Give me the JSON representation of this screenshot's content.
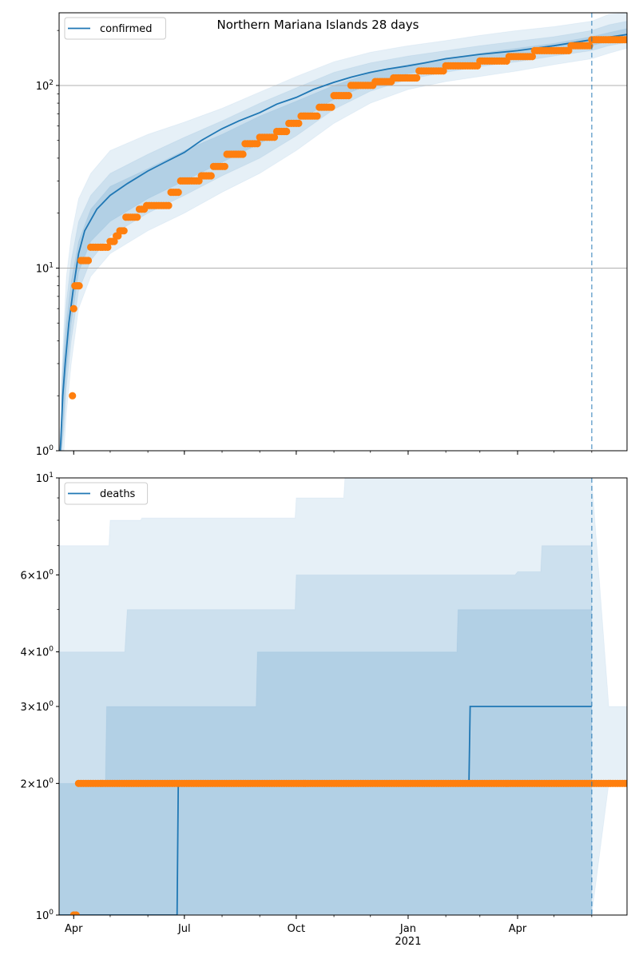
{
  "chart_data": [
    {
      "type": "line",
      "title": "Northern Mariana Islands 28 days",
      "yscale": "log",
      "ylim": [
        1,
        250
      ],
      "xlim": [
        "2020-03-20",
        "2021-06-30"
      ],
      "yticks": [
        {
          "value": 1,
          "base": "10",
          "exp": "0"
        },
        {
          "value": 10,
          "base": "10",
          "exp": "1"
        },
        {
          "value": 100,
          "base": "10",
          "exp": "2"
        }
      ],
      "xticks": [
        {
          "date": "2020-04-01",
          "label": "Apr",
          "sublabel": ""
        },
        {
          "date": "2020-07-01",
          "label": "Jul",
          "sublabel": ""
        },
        {
          "date": "2020-10-01",
          "label": "Oct",
          "sublabel": ""
        },
        {
          "date": "2021-01-01",
          "label": "Jan",
          "sublabel": "2021"
        },
        {
          "date": "2021-04-01",
          "label": "Apr",
          "sublabel": ""
        }
      ],
      "grid": "y-major",
      "legend": {
        "position": "top-left",
        "label": "confirmed"
      },
      "forecast_start": "2021-06-01",
      "series": [
        {
          "name": "confirmed",
          "style": "line",
          "color": "#1f77b4",
          "x": [
            "2020-03-21",
            "2020-03-23",
            "2020-03-25",
            "2020-03-28",
            "2020-04-01",
            "2020-04-05",
            "2020-04-10",
            "2020-04-20",
            "2020-05-01",
            "2020-05-15",
            "2020-06-01",
            "2020-06-15",
            "2020-07-01",
            "2020-07-15",
            "2020-08-01",
            "2020-08-15",
            "2020-09-01",
            "2020-09-15",
            "2020-10-01",
            "2020-10-15",
            "2020-11-01",
            "2020-11-15",
            "2020-12-01",
            "2020-12-15",
            "2021-01-01",
            "2021-01-15",
            "2021-02-01",
            "2021-03-01",
            "2021-04-01",
            "2021-05-01",
            "2021-06-01",
            "2021-06-30"
          ],
          "y": [
            1,
            2,
            3,
            5,
            8,
            12,
            16,
            21,
            25,
            29,
            34,
            38,
            43,
            50,
            58,
            64,
            71,
            79,
            86,
            95,
            104,
            111,
            118,
            123,
            128,
            133,
            140,
            148,
            155,
            165,
            178,
            190
          ]
        },
        {
          "name": "observed",
          "style": "scatter",
          "color": "#ff7f0e",
          "x": [
            "2020-03-31",
            "2020-04-01",
            "2020-04-02",
            "2020-04-04",
            "2020-04-07",
            "2020-04-11",
            "2020-04-15",
            "2020-05-01",
            "2020-05-06",
            "2020-05-09",
            "2020-05-14",
            "2020-05-25",
            "2020-05-31",
            "2020-06-04",
            "2020-06-20",
            "2020-06-28",
            "2020-07-05",
            "2020-07-15",
            "2020-07-25",
            "2020-08-05",
            "2020-08-20",
            "2020-09-01",
            "2020-09-15",
            "2020-09-25",
            "2020-10-05",
            "2020-10-20",
            "2020-11-01",
            "2020-11-15",
            "2020-12-05",
            "2020-12-20",
            "2021-01-10",
            "2021-02-01",
            "2021-03-01",
            "2021-03-25",
            "2021-04-15",
            "2021-05-15",
            "2021-06-01",
            "2021-06-30"
          ],
          "y": [
            2,
            6,
            8,
            8,
            11,
            11,
            13,
            14,
            15,
            16,
            19,
            21,
            22,
            22,
            26,
            30,
            30,
            32,
            36,
            42,
            48,
            52,
            56,
            62,
            68,
            76,
            88,
            100,
            105,
            110,
            120,
            128,
            136,
            144,
            155,
            165,
            178,
            178
          ]
        }
      ],
      "bands": [
        {
          "level": "outer",
          "color": "#1f77b4",
          "opacity": 0.11,
          "x": [
            "2020-03-22",
            "2020-03-24",
            "2020-03-26",
            "2020-03-30",
            "2020-04-05",
            "2020-04-15",
            "2020-05-01",
            "2020-06-01",
            "2020-07-01",
            "2020-08-01",
            "2020-09-01",
            "2020-10-01",
            "2020-11-01",
            "2020-12-01",
            "2021-01-01",
            "2021-02-01",
            "2021-03-01",
            "2021-04-01",
            "2021-05-01",
            "2021-06-01",
            "2021-06-15",
            "2021-06-30"
          ],
          "hi": [
            2.5,
            5,
            9,
            15,
            24,
            33,
            44,
            54,
            63,
            75,
            92,
            112,
            135,
            152,
            165,
            176,
            188,
            200,
            210,
            225,
            245,
            260
          ],
          "lo": [
            1,
            1,
            1.6,
            3,
            6,
            9,
            12,
            16,
            20,
            26,
            33,
            44,
            62,
            80,
            95,
            105,
            112,
            120,
            130,
            140,
            150,
            160
          ]
        },
        {
          "level": "middle",
          "color": "#1f77b4",
          "opacity": 0.13,
          "x": [
            "2020-03-22",
            "2020-03-24",
            "2020-03-26",
            "2020-03-30",
            "2020-04-05",
            "2020-04-15",
            "2020-05-01",
            "2020-06-01",
            "2020-07-01",
            "2020-08-01",
            "2020-09-01",
            "2020-10-01",
            "2020-11-01",
            "2020-12-01",
            "2021-01-01",
            "2021-02-01",
            "2021-03-01",
            "2021-04-01",
            "2021-05-01",
            "2021-06-01",
            "2021-06-15",
            "2021-06-30"
          ],
          "hi": [
            2.2,
            4,
            6.5,
            11,
            18,
            25,
            33,
            42,
            52,
            64,
            80,
            97,
            118,
            133,
            145,
            155,
            165,
            175,
            185,
            200,
            215,
            225
          ],
          "lo": [
            1,
            1.3,
            2.2,
            4,
            7.5,
            11,
            15,
            20,
            25,
            32,
            40,
            53,
            74,
            93,
            108,
            118,
            127,
            135,
            145,
            155,
            165,
            172
          ]
        },
        {
          "level": "inner",
          "color": "#1f77b4",
          "opacity": 0.15,
          "x": [
            "2020-03-22",
            "2020-03-24",
            "2020-03-26",
            "2020-03-30",
            "2020-04-05",
            "2020-04-15",
            "2020-05-01",
            "2020-06-01",
            "2020-07-01",
            "2020-08-01",
            "2020-09-01",
            "2020-10-01",
            "2020-11-01",
            "2020-12-01",
            "2021-01-01",
            "2021-02-01",
            "2021-03-01",
            "2021-04-01",
            "2021-05-01",
            "2021-06-01",
            "2021-06-15",
            "2021-06-30"
          ],
          "hi": [
            2,
            3.4,
            5,
            8.5,
            14,
            21,
            28,
            35,
            44,
            54,
            68,
            82,
            100,
            117,
            130,
            140,
            150,
            160,
            170,
            185,
            195,
            205
          ],
          "lo": [
            1,
            1.6,
            2.7,
            5,
            9.5,
            14,
            18,
            24,
            30,
            38,
            48,
            63,
            84,
            102,
            116,
            127,
            136,
            145,
            155,
            165,
            175,
            180
          ]
        }
      ]
    },
    {
      "type": "line",
      "title": "",
      "yscale": "log",
      "ylim": [
        1,
        10
      ],
      "xlim": [
        "2020-03-20",
        "2021-06-30"
      ],
      "yticks": [
        {
          "value": 1,
          "base": "10",
          "exp": "0"
        },
        {
          "value": 2,
          "base": "2×10",
          "exp": "0"
        },
        {
          "value": 3,
          "base": "3×10",
          "exp": "0"
        },
        {
          "value": 4,
          "base": "4×10",
          "exp": "0"
        },
        {
          "value": 6,
          "base": "6×10",
          "exp": "0"
        },
        {
          "value": 10,
          "base": "10",
          "exp": "1"
        }
      ],
      "xticks": [
        {
          "date": "2020-04-01",
          "label": "Apr",
          "sublabel": ""
        },
        {
          "date": "2020-07-01",
          "label": "Jul",
          "sublabel": ""
        },
        {
          "date": "2020-10-01",
          "label": "Oct",
          "sublabel": ""
        },
        {
          "date": "2021-01-01",
          "label": "Jan",
          "sublabel": "2021"
        },
        {
          "date": "2021-04-01",
          "label": "Apr",
          "sublabel": ""
        }
      ],
      "grid": "none",
      "legend": {
        "position": "top-left",
        "label": "deaths"
      },
      "forecast_start": "2021-06-01",
      "series": [
        {
          "name": "deaths",
          "style": "step",
          "color": "#1f77b4",
          "x": [
            "2020-03-20",
            "2020-06-25",
            "2020-06-26",
            "2021-02-20",
            "2021-02-21",
            "2021-06-01"
          ],
          "y": [
            1,
            1,
            2,
            2,
            3,
            3
          ]
        },
        {
          "name": "observed",
          "style": "scatter",
          "color": "#ff7f0e",
          "x": [
            "2020-04-01",
            "2020-04-03",
            "2020-04-05",
            "2020-05-01",
            "2020-06-01",
            "2020-07-01",
            "2020-08-01",
            "2020-09-01",
            "2020-10-01",
            "2020-11-01",
            "2020-12-01",
            "2021-01-01",
            "2021-02-01",
            "2021-03-01",
            "2021-04-01",
            "2021-05-01",
            "2021-06-01",
            "2021-06-30"
          ],
          "y": [
            1,
            1,
            2,
            2,
            2,
            2,
            2,
            2,
            2,
            2,
            2,
            2,
            2,
            2,
            2,
            2,
            2,
            2
          ]
        }
      ],
      "bands": [
        {
          "level": "outer",
          "color": "#1f77b4",
          "opacity": 0.11,
          "x": [
            "2020-03-20",
            "2020-04-30",
            "2020-05-01",
            "2020-05-26",
            "2020-05-27",
            "2020-09-30",
            "2020-10-01",
            "2020-11-09",
            "2020-11-10",
            "2021-02-10",
            "2021-06-01",
            "2021-06-15",
            "2021-06-22",
            "2021-06-30"
          ],
          "hi": [
            7,
            7,
            8,
            8,
            8.1,
            8.1,
            9,
            9,
            10.5,
            10.5,
            10.5,
            3,
            3,
            3
          ],
          "lo": [
            1,
            1,
            1,
            1,
            1,
            1,
            1,
            1,
            1,
            1,
            1,
            2,
            2,
            2
          ]
        },
        {
          "level": "middle",
          "color": "#1f77b4",
          "opacity": 0.13,
          "x": [
            "2020-03-20",
            "2020-05-13",
            "2020-05-15",
            "2020-09-30",
            "2020-10-01",
            "2021-03-30",
            "2021-04-01",
            "2021-04-20",
            "2021-04-21",
            "2021-06-01"
          ],
          "hi": [
            4,
            4,
            5,
            5,
            6,
            6,
            6.1,
            6.1,
            7,
            7
          ],
          "lo": [
            1,
            1,
            1,
            1,
            1,
            1,
            1,
            1,
            1,
            1
          ]
        },
        {
          "level": "inner",
          "color": "#1f77b4",
          "opacity": 0.15,
          "x": [
            "2020-03-20",
            "2020-04-27",
            "2020-04-28",
            "2020-08-29",
            "2020-08-30",
            "2021-02-10",
            "2021-02-11",
            "2021-04-30",
            "2021-05-01",
            "2021-06-01"
          ],
          "hi": [
            2,
            2,
            3,
            3,
            4,
            4,
            5,
            5,
            5,
            5
          ],
          "lo": [
            1,
            1,
            1,
            1,
            1,
            1,
            1,
            1,
            1,
            1
          ]
        }
      ]
    }
  ]
}
